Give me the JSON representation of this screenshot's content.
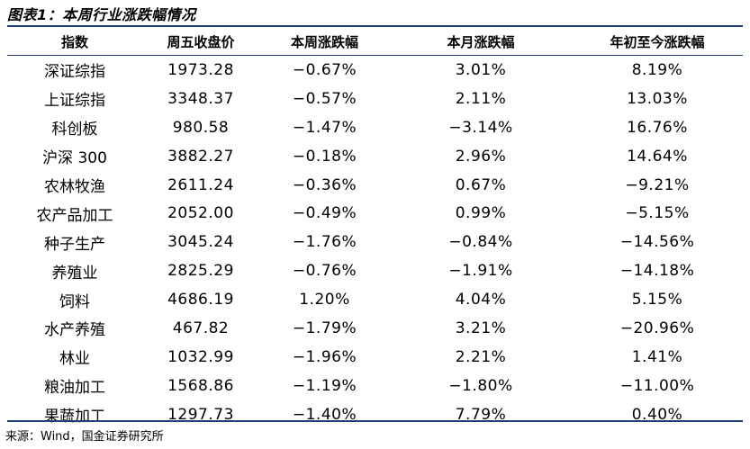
{
  "title": "图表1：本周行业涨跌幅情况",
  "headers": [
    "指数",
    "周五收盘价",
    "本周涨跌幅",
    "本月涨跌幅",
    "年初至今涨跌幅"
  ],
  "rows": [
    [
      "深证综指",
      "1973.28",
      "−0.67%",
      "3.01%",
      "8.19%"
    ],
    [
      "上证综指",
      "3348.37",
      "−0.57%",
      "2.11%",
      "13.03%"
    ],
    [
      "科创板",
      "980.58",
      "−1.47%",
      "−3.14%",
      "16.76%"
    ],
    [
      "沪深 300",
      "3882.27",
      "−0.18%",
      "2.96%",
      "14.64%"
    ],
    [
      "农林牧渔",
      "2611.24",
      "−0.36%",
      "0.67%",
      "−9.21%"
    ],
    [
      "农产品加工",
      "2052.00",
      "−0.49%",
      "0.99%",
      "−5.15%"
    ],
    [
      "种子生产",
      "3045.24",
      "−1.76%",
      "−0.84%",
      "−14.56%"
    ],
    [
      "养殖业",
      "2825.29",
      "−0.76%",
      "−1.91%",
      "−14.18%"
    ],
    [
      "饲料",
      "4686.19",
      "1.20%",
      "4.04%",
      "5.15%"
    ],
    [
      "水产养殖",
      "467.82",
      "−1.79%",
      "3.21%",
      "−20.96%"
    ],
    [
      "林业",
      "1032.99",
      "−1.96%",
      "2.21%",
      "1.41%"
    ],
    [
      "粮油加工",
      "1568.86",
      "−1.19%",
      "−1.80%",
      "−11.00%"
    ],
    [
      "果蔬加工",
      "1297.73",
      "−1.40%",
      "7.79%",
      "0.40%"
    ]
  ],
  "source": "来源：Wind，国金证券研究所"
}
